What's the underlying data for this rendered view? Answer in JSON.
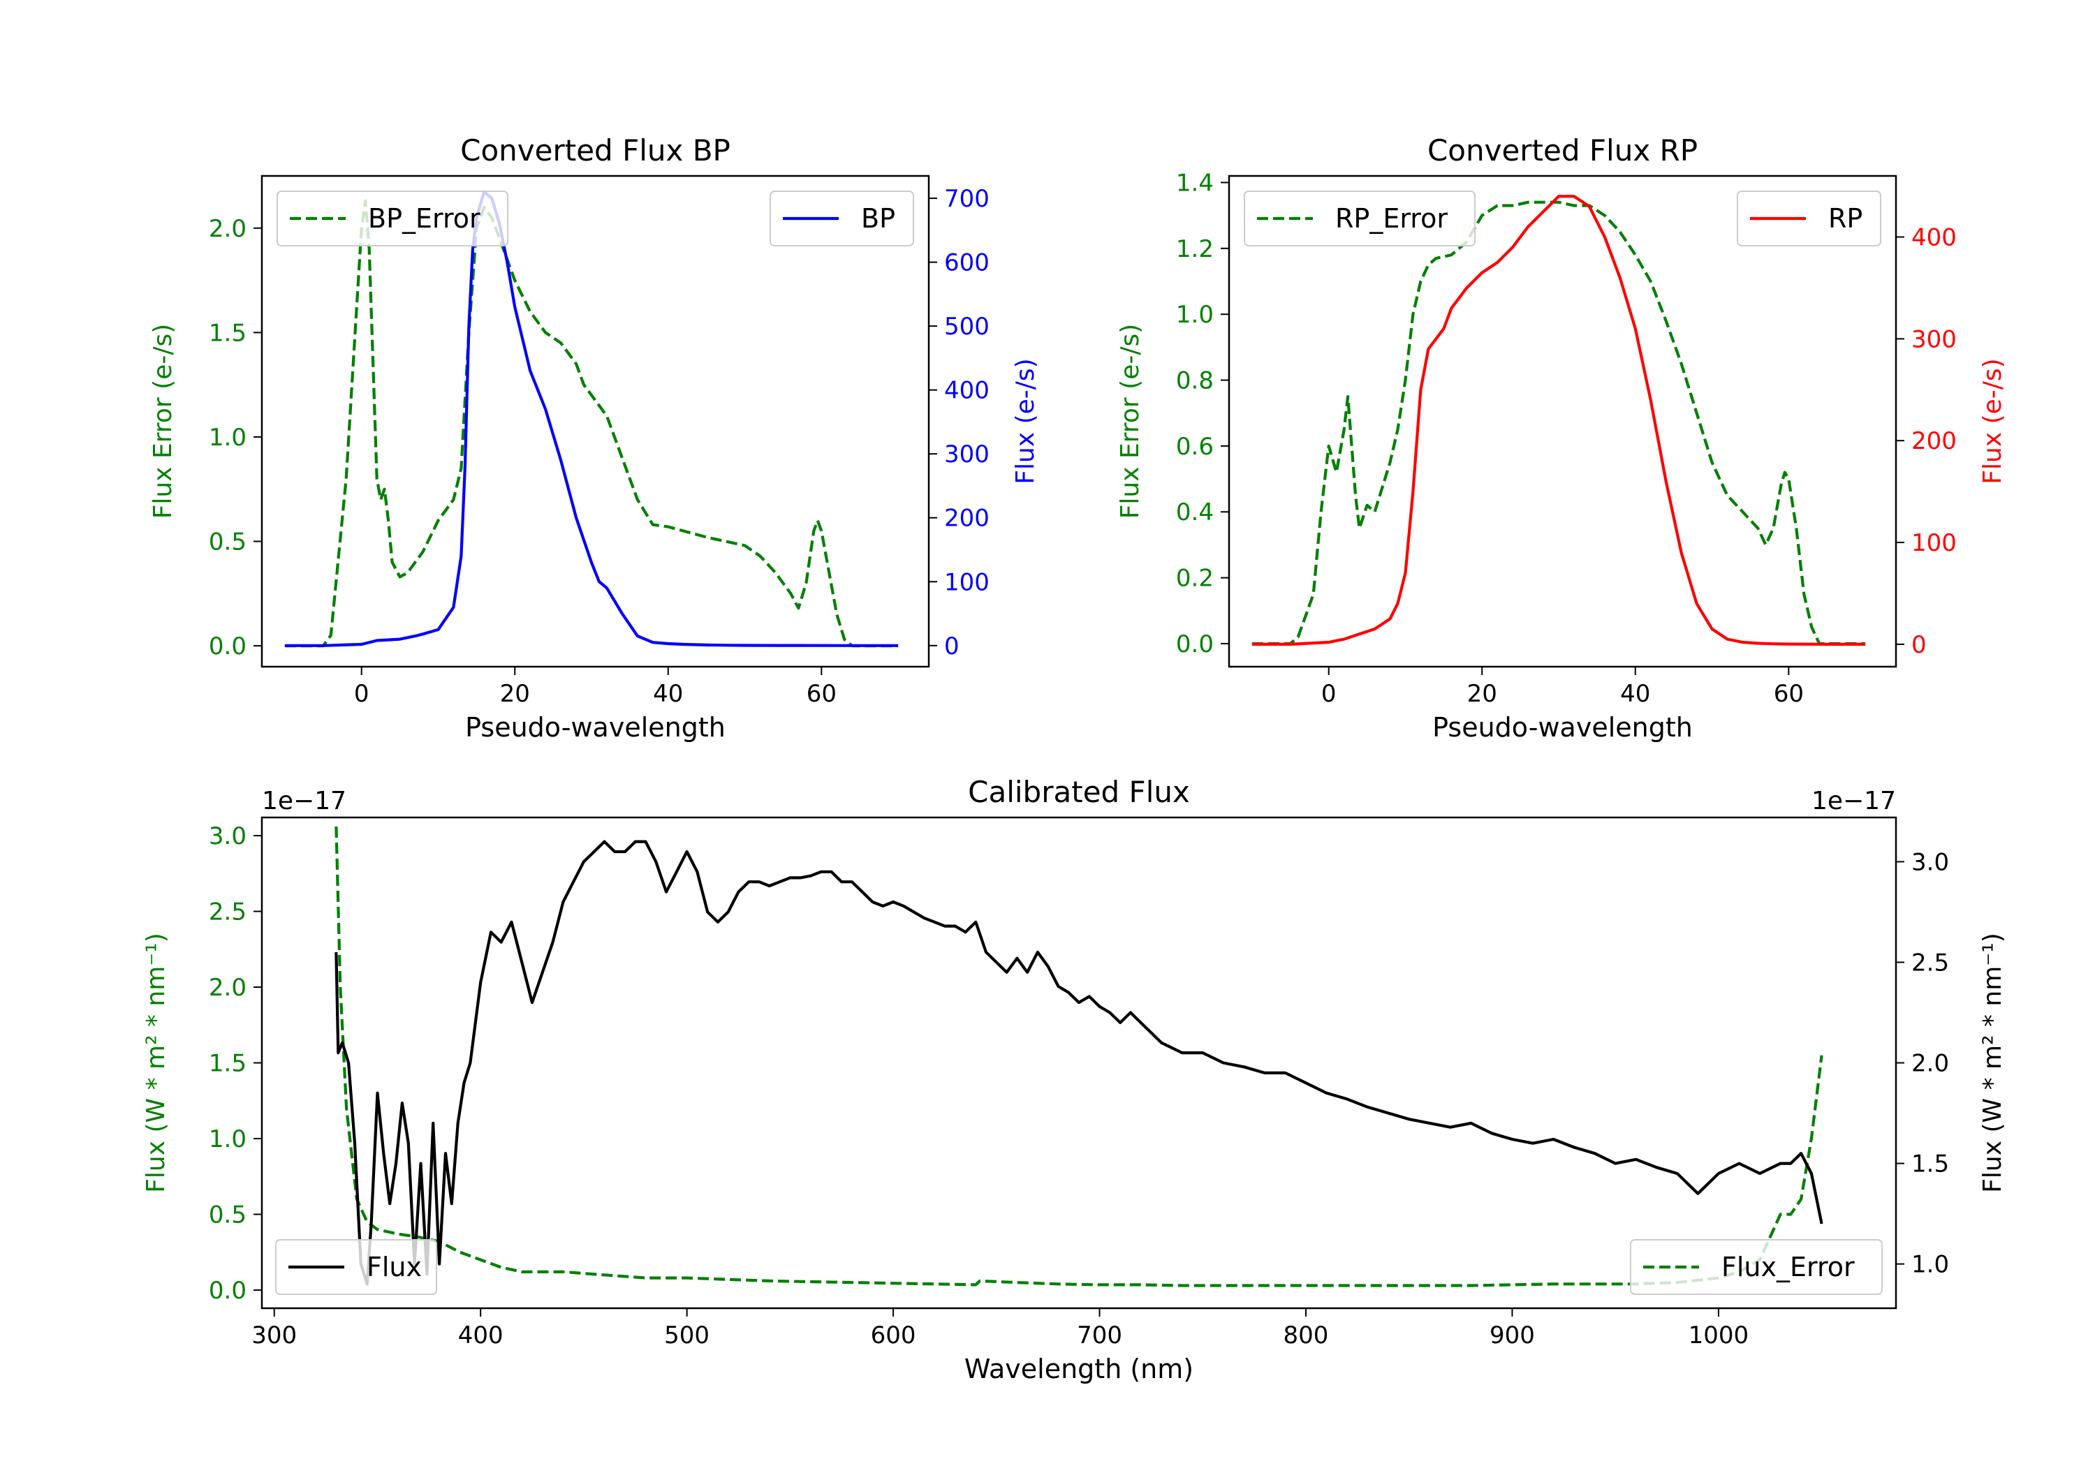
{
  "chart_data": [
    {
      "id": "bp",
      "type": "line",
      "title": "Converted Flux BP",
      "xlabel": "Pseudo-wavelength",
      "ylabel_left": "Flux Error (e-/s)",
      "ylabel_right": "Flux (e-/s)",
      "xlim": [
        -13,
        74
      ],
      "ylim_left": [
        -0.1,
        2.25
      ],
      "ylim_right": [
        -33,
        735
      ],
      "x_ticks": [
        0,
        20,
        40,
        60
      ],
      "yleft_ticks": [
        "0.0",
        "0.5",
        "1.0",
        "1.5",
        "2.0"
      ],
      "yright_ticks": [
        0,
        100,
        200,
        300,
        400,
        500,
        600,
        700
      ],
      "legend_left": "BP_Error",
      "legend_right": "BP",
      "colors": {
        "error": "#008000",
        "flux": "#0000ff"
      },
      "error_series": {
        "name": "BP_Error",
        "x": [
          -10,
          -5,
          -4,
          -2,
          0,
          0.5,
          1,
          2,
          2.5,
          3,
          3.5,
          4,
          5,
          6,
          8,
          10,
          12,
          13,
          14,
          15,
          16,
          17,
          18,
          19,
          20,
          22,
          24,
          26,
          28,
          29,
          30,
          32,
          34,
          36,
          38,
          40,
          45,
          50,
          52,
          54,
          56,
          57,
          58,
          59,
          59.5,
          60,
          61,
          62,
          63,
          64,
          65,
          70
        ],
        "y": [
          0,
          0,
          0.05,
          0.8,
          2.0,
          2.13,
          1.9,
          0.8,
          0.7,
          0.75,
          0.6,
          0.4,
          0.33,
          0.35,
          0.45,
          0.6,
          0.7,
          0.85,
          1.5,
          2.0,
          2.1,
          2.05,
          1.95,
          1.85,
          1.75,
          1.6,
          1.5,
          1.45,
          1.35,
          1.25,
          1.2,
          1.1,
          0.9,
          0.7,
          0.58,
          0.57,
          0.52,
          0.48,
          0.43,
          0.35,
          0.25,
          0.18,
          0.3,
          0.55,
          0.6,
          0.55,
          0.35,
          0.15,
          0.03,
          0,
          0,
          0
        ]
      },
      "flux_series": {
        "name": "BP",
        "x": [
          -10,
          -5,
          0,
          2,
          5,
          7,
          8,
          10,
          12,
          13,
          13.5,
          14,
          14.5,
          15,
          16,
          17,
          18,
          19,
          20,
          22,
          24,
          26,
          28,
          30,
          31,
          32,
          34,
          36,
          38,
          40,
          42,
          45,
          48,
          50,
          55,
          60,
          65,
          70
        ],
        "y": [
          0,
          0,
          2,
          8,
          10,
          15,
          18,
          25,
          60,
          140,
          280,
          500,
          620,
          670,
          710,
          700,
          660,
          600,
          530,
          430,
          370,
          290,
          200,
          130,
          100,
          90,
          50,
          15,
          5,
          3,
          2,
          1,
          0.5,
          0.3,
          0.2,
          0.1,
          0,
          0
        ]
      }
    },
    {
      "id": "rp",
      "type": "line",
      "title": "Converted Flux RP",
      "xlabel": "Pseudo-wavelength",
      "ylabel_left": "Flux Error (e-/s)",
      "ylabel_right": "Flux (e-/s)",
      "xlim": [
        -13,
        74
      ],
      "ylim_left": [
        -0.07,
        1.42
      ],
      "ylim_right": [
        -22,
        460
      ],
      "x_ticks": [
        0,
        20,
        40,
        60
      ],
      "yleft_ticks": [
        "0.0",
        "0.2",
        "0.4",
        "0.6",
        "0.8",
        "1.0",
        "1.2",
        "1.4"
      ],
      "yright_ticks": [
        0,
        100,
        200,
        300,
        400
      ],
      "legend_left": "RP_Error",
      "legend_right": "RP",
      "colors": {
        "error": "#008000",
        "flux": "#ff0000"
      },
      "error_series": {
        "name": "RP_Error",
        "x": [
          -10,
          -5,
          -4,
          -2,
          -1,
          0,
          1,
          2,
          2.5,
          3,
          3.5,
          4,
          5,
          6,
          8,
          9,
          10,
          11,
          12,
          13,
          14,
          16,
          18,
          20,
          22,
          24,
          26,
          28,
          30,
          32,
          34,
          36,
          38,
          40,
          42,
          44,
          46,
          48,
          50,
          52,
          54,
          56,
          57,
          58,
          59,
          59.5,
          60,
          61,
          62,
          63,
          64,
          65,
          70
        ],
        "y": [
          0,
          0,
          0.02,
          0.15,
          0.4,
          0.6,
          0.52,
          0.65,
          0.75,
          0.6,
          0.45,
          0.35,
          0.42,
          0.4,
          0.55,
          0.65,
          0.8,
          1.0,
          1.1,
          1.15,
          1.17,
          1.18,
          1.22,
          1.3,
          1.33,
          1.33,
          1.34,
          1.34,
          1.34,
          1.33,
          1.33,
          1.3,
          1.25,
          1.18,
          1.1,
          0.98,
          0.85,
          0.7,
          0.55,
          0.45,
          0.4,
          0.35,
          0.3,
          0.35,
          0.48,
          0.52,
          0.5,
          0.35,
          0.15,
          0.05,
          0,
          0,
          0
        ]
      },
      "flux_series": {
        "name": "RP",
        "x": [
          -10,
          -5,
          0,
          2,
          4,
          6,
          8,
          9,
          10,
          11,
          12,
          13,
          14,
          15,
          16,
          18,
          20,
          22,
          24,
          26,
          28,
          30,
          32,
          34,
          36,
          38,
          40,
          42,
          44,
          46,
          48,
          50,
          52,
          54,
          56,
          58,
          60,
          65,
          70
        ],
        "y": [
          0,
          0,
          2,
          5,
          10,
          15,
          25,
          40,
          70,
          150,
          250,
          290,
          300,
          310,
          330,
          350,
          365,
          375,
          390,
          410,
          425,
          440,
          440,
          430,
          400,
          360,
          310,
          240,
          160,
          90,
          40,
          15,
          5,
          2,
          1,
          0.5,
          0.2,
          0,
          0
        ]
      }
    },
    {
      "id": "cal",
      "type": "line",
      "title": "Calibrated Flux",
      "xlabel": "Wavelength (nm)",
      "ylabel_left": "Flux (W * m² * nm⁻¹)",
      "ylabel_right": "Flux (W * m² * nm⁻¹)",
      "offset_left": "1e−17",
      "offset_right": "1e−17",
      "xlim": [
        294,
        1086
      ],
      "ylim_left": [
        -0.12,
        3.12
      ],
      "ylim_right": [
        0.78,
        3.22
      ],
      "x_ticks": [
        300,
        400,
        500,
        600,
        700,
        800,
        900,
        1000
      ],
      "yleft_ticks": [
        "0.0",
        "0.5",
        "1.0",
        "1.5",
        "2.0",
        "2.5",
        "3.0"
      ],
      "yright_ticks": [
        "1.0",
        "1.5",
        "2.0",
        "2.5",
        "3.0"
      ],
      "legend_left": "Flux",
      "legend_right": "Flux_Error",
      "colors": {
        "error": "#008000",
        "flux": "#000000"
      },
      "error_series": {
        "name": "Flux_Error",
        "x": [
          330,
          332,
          335,
          340,
          345,
          350,
          360,
          370,
          380,
          390,
          400,
          410,
          420,
          440,
          460,
          480,
          500,
          520,
          540,
          560,
          580,
          600,
          620,
          640,
          642,
          660,
          680,
          700,
          720,
          740,
          760,
          780,
          800,
          820,
          840,
          860,
          880,
          900,
          920,
          940,
          960,
          980,
          1000,
          1010,
          1020,
          1025,
          1030,
          1035,
          1040,
          1045,
          1050
        ],
        "y": [
          3.06,
          2.0,
          1.2,
          0.6,
          0.45,
          0.4,
          0.37,
          0.35,
          0.32,
          0.25,
          0.2,
          0.15,
          0.12,
          0.12,
          0.1,
          0.08,
          0.08,
          0.07,
          0.06,
          0.055,
          0.05,
          0.045,
          0.04,
          0.035,
          0.06,
          0.05,
          0.04,
          0.035,
          0.035,
          0.03,
          0.03,
          0.03,
          0.03,
          0.03,
          0.03,
          0.03,
          0.03,
          0.035,
          0.04,
          0.04,
          0.04,
          0.05,
          0.08,
          0.12,
          0.2,
          0.35,
          0.5,
          0.5,
          0.6,
          1.0,
          1.55
        ]
      },
      "flux_series": {
        "name": "Flux",
        "x": [
          330,
          331,
          333,
          336,
          339,
          342,
          345,
          347,
          350,
          353,
          356,
          359,
          362,
          365,
          368,
          371,
          374,
          377,
          380,
          383,
          386,
          389,
          392,
          395,
          400,
          405,
          410,
          415,
          420,
          425,
          430,
          435,
          440,
          445,
          450,
          455,
          460,
          465,
          470,
          475,
          480,
          485,
          490,
          495,
          500,
          505,
          510,
          515,
          520,
          525,
          530,
          535,
          540,
          545,
          550,
          555,
          560,
          565,
          570,
          575,
          580,
          585,
          590,
          595,
          600,
          605,
          610,
          615,
          620,
          625,
          630,
          635,
          640,
          645,
          650,
          655,
          660,
          665,
          670,
          675,
          680,
          685,
          690,
          695,
          700,
          705,
          710,
          715,
          720,
          725,
          730,
          740,
          750,
          760,
          770,
          780,
          790,
          800,
          810,
          820,
          830,
          840,
          850,
          860,
          870,
          880,
          890,
          900,
          910,
          920,
          930,
          940,
          950,
          960,
          970,
          980,
          990,
          1000,
          1010,
          1020,
          1030,
          1035,
          1040,
          1045,
          1050
        ],
        "y": [
          2.55,
          2.05,
          2.1,
          2.0,
          1.6,
          1.0,
          0.9,
          1.2,
          1.85,
          1.55,
          1.3,
          1.5,
          1.8,
          1.6,
          1.0,
          1.5,
          0.95,
          1.7,
          1.0,
          1.55,
          1.3,
          1.7,
          1.9,
          2.0,
          2.4,
          2.65,
          2.6,
          2.7,
          2.5,
          2.3,
          2.45,
          2.6,
          2.8,
          2.9,
          3.0,
          3.05,
          3.1,
          3.05,
          3.05,
          3.1,
          3.1,
          3.0,
          2.85,
          2.95,
          3.05,
          2.95,
          2.75,
          2.7,
          2.75,
          2.85,
          2.9,
          2.9,
          2.88,
          2.9,
          2.92,
          2.92,
          2.93,
          2.95,
          2.95,
          2.9,
          2.9,
          2.85,
          2.8,
          2.78,
          2.8,
          2.78,
          2.75,
          2.72,
          2.7,
          2.68,
          2.68,
          2.65,
          2.7,
          2.55,
          2.5,
          2.45,
          2.52,
          2.45,
          2.55,
          2.48,
          2.38,
          2.35,
          2.3,
          2.33,
          2.28,
          2.25,
          2.2,
          2.25,
          2.2,
          2.15,
          2.1,
          2.05,
          2.05,
          2.0,
          1.98,
          1.95,
          1.95,
          1.9,
          1.85,
          1.82,
          1.78,
          1.75,
          1.72,
          1.7,
          1.68,
          1.7,
          1.65,
          1.62,
          1.6,
          1.62,
          1.58,
          1.55,
          1.5,
          1.52,
          1.48,
          1.45,
          1.35,
          1.45,
          1.5,
          1.45,
          1.5,
          1.5,
          1.55,
          1.45,
          1.2
        ]
      }
    }
  ]
}
